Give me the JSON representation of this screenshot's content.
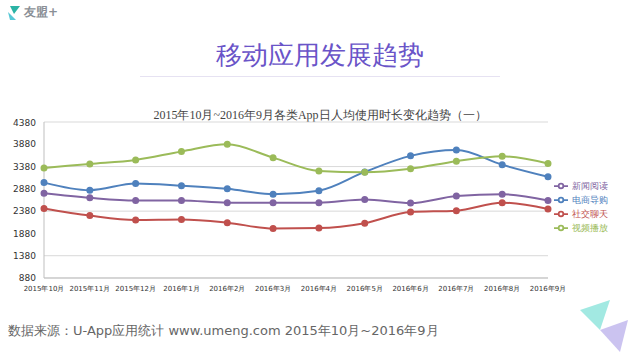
{
  "header": {
    "logo": "友盟+",
    "title": "移动应用发展趋势"
  },
  "footer": {
    "source": "数据来源：U-App应用统计 www.umeng.com 2015年10月~2016年9月"
  },
  "chart_data": {
    "type": "line",
    "title": "2015年10月~2016年9月各类App日人均使用时长变化趋势（一）",
    "categories": [
      "2015年10月",
      "2015年11月",
      "2015年12月",
      "2016年1月",
      "2016年2月",
      "2016年3月",
      "2016年4月",
      "2016年5月",
      "2016年6月",
      "2016年7月",
      "2016年8月",
      "2016年9月"
    ],
    "series": [
      {
        "name": "电商导购",
        "color": "#4f81bd",
        "values": [
          3020,
          2850,
          3000,
          2950,
          2880,
          2760,
          2840,
          3260,
          3620,
          3750,
          3420,
          3150
        ]
      },
      {
        "name": "社交聊天",
        "color": "#c0504d",
        "values": [
          2440,
          2280,
          2180,
          2190,
          2120,
          1990,
          2000,
          2110,
          2360,
          2390,
          2570,
          2430
        ]
      },
      {
        "name": "视频播放",
        "color": "#9bbb59",
        "values": [
          3350,
          3440,
          3530,
          3720,
          3880,
          3580,
          3280,
          3250,
          3330,
          3500,
          3610,
          3450
        ]
      },
      {
        "name": "新闻阅读",
        "color": "#8064a2",
        "values": [
          2780,
          2680,
          2620,
          2620,
          2570,
          2570,
          2570,
          2640,
          2560,
          2720,
          2760,
          2620
        ]
      }
    ],
    "ylim": [
      880,
      4380
    ],
    "yticks": [
      880,
      1380,
      1880,
      2380,
      2880,
      3380,
      3880,
      4380
    ],
    "grid": true,
    "legend": "right",
    "marker": "circle"
  }
}
